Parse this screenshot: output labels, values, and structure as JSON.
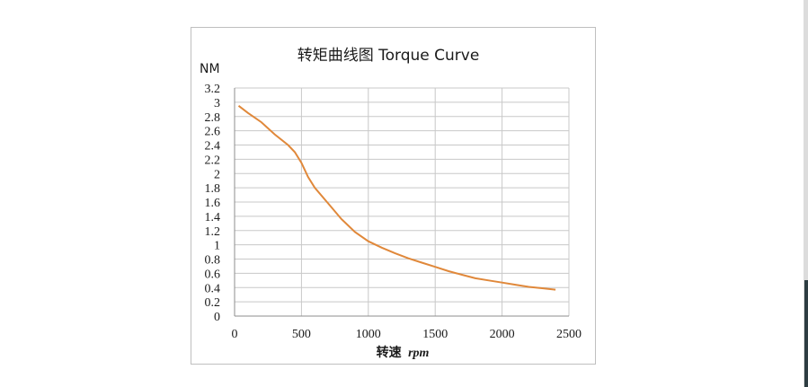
{
  "chart_data": {
    "type": "line",
    "title": "转矩曲线图 Torque Curve",
    "ylabel": "NM",
    "xlabel_prefix": "转速",
    "xlabel_unit": "rpm",
    "xlim": [
      0,
      2500
    ],
    "ylim": [
      0,
      3.2
    ],
    "x_ticks": [
      "0",
      "500",
      "1000",
      "1500",
      "2000",
      "2500"
    ],
    "y_ticks": [
      "0",
      "0.2",
      "0.4",
      "0.6",
      "0.8",
      "1",
      "1.2",
      "1.4",
      "1.6",
      "1.8",
      "2",
      "2.2",
      "2.4",
      "2.6",
      "2.8",
      "3",
      "3.2"
    ],
    "grid": "horizontal-and-vertical",
    "colors": {
      "series": "#e0883a",
      "grid": "#c8c8c8",
      "axis": "#8c8c8c"
    },
    "series": [
      {
        "x": [
          30,
          100,
          200,
          300,
          400,
          450,
          500,
          550,
          600,
          700,
          800,
          900,
          1000,
          1100,
          1200,
          1300,
          1400,
          1500,
          1600,
          1700,
          1800,
          1900,
          2000,
          2100,
          2200,
          2300,
          2400
        ],
        "y": [
          2.95,
          2.85,
          2.72,
          2.55,
          2.4,
          2.3,
          2.15,
          1.95,
          1.8,
          1.58,
          1.36,
          1.18,
          1.05,
          0.96,
          0.88,
          0.81,
          0.75,
          0.69,
          0.63,
          0.58,
          0.53,
          0.5,
          0.47,
          0.44,
          0.41,
          0.39,
          0.37
        ]
      }
    ]
  }
}
